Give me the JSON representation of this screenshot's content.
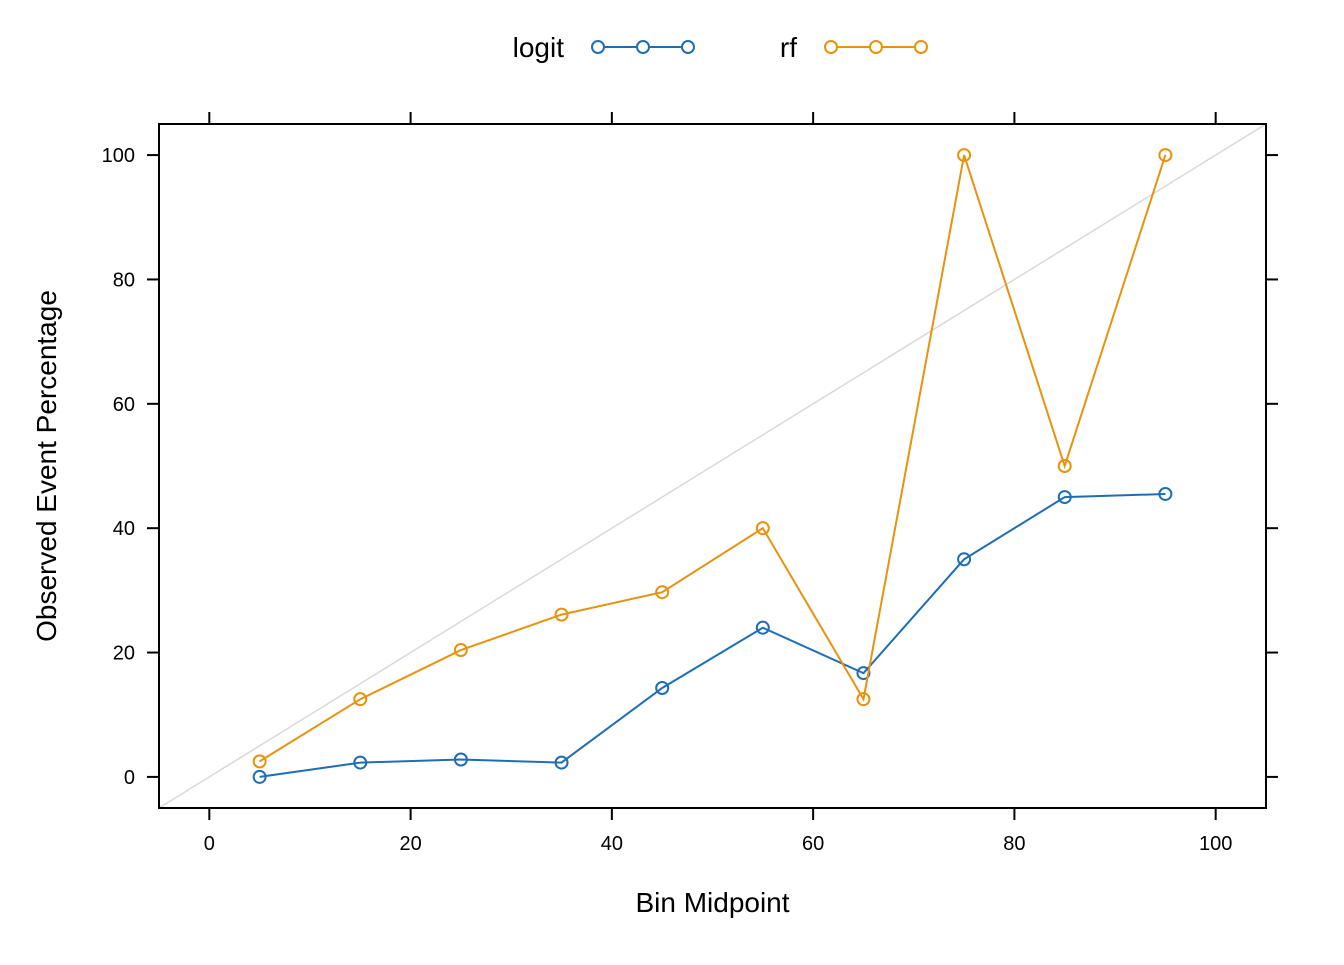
{
  "chart_data": {
    "type": "line",
    "title": "",
    "xlabel": "Bin Midpoint",
    "ylabel": "Observed Event Percentage",
    "xlim": [
      -5,
      105
    ],
    "ylim": [
      -5,
      105
    ],
    "x_ticks": [
      0,
      20,
      40,
      60,
      80,
      100
    ],
    "y_ticks": [
      0,
      20,
      40,
      60,
      80,
      100
    ],
    "grid": false,
    "legend_position": "top",
    "reference_line": {
      "from": [
        -5,
        -5
      ],
      "to": [
        105,
        105
      ],
      "color": "#d9d9d9"
    },
    "x": [
      5,
      15,
      25,
      35,
      45,
      55,
      65,
      75,
      85,
      95
    ],
    "series": [
      {
        "name": "logit",
        "color": "#1f6eb3",
        "values": [
          0,
          2.3,
          2.8,
          2.3,
          14.3,
          24,
          16.7,
          35,
          45,
          45.5
        ]
      },
      {
        "name": "rf",
        "color": "#e8920e",
        "values": [
          2.5,
          12.5,
          20.4,
          26.1,
          29.7,
          40,
          12.5,
          100,
          50,
          100
        ]
      }
    ]
  }
}
